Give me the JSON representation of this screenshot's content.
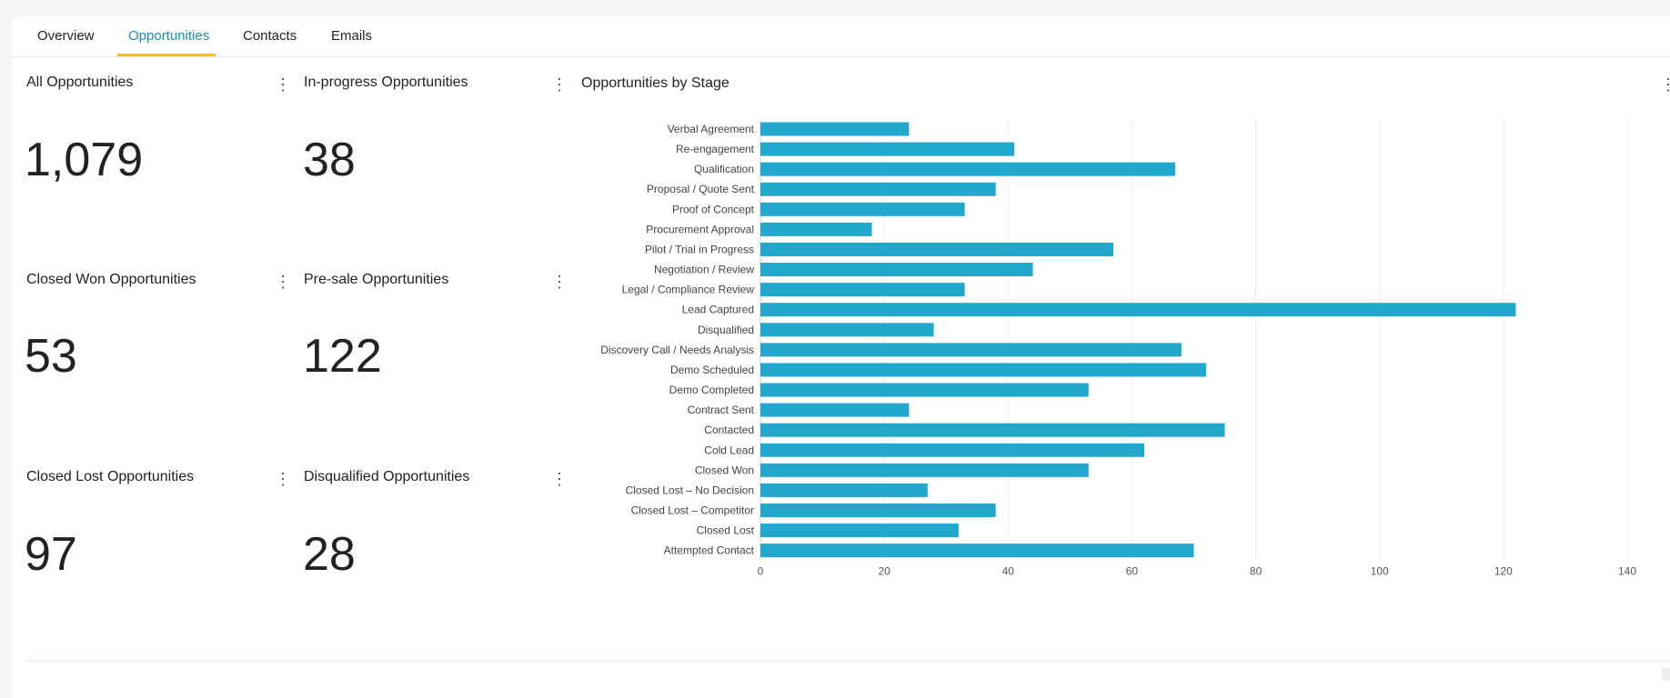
{
  "tabs": [
    {
      "label": "Overview"
    },
    {
      "label": "Opportunities"
    },
    {
      "label": "Contacts"
    },
    {
      "label": "Emails"
    }
  ],
  "active_tab": "Opportunities",
  "kpis": [
    {
      "title": "All Opportunities",
      "value": "1,079"
    },
    {
      "title": "In-progress Opportunities",
      "value": "38"
    },
    {
      "title": "Closed Won Opportunities",
      "value": "53"
    },
    {
      "title": "Pre-sale Opportunities",
      "value": "122"
    },
    {
      "title": "Closed Lost Opportunities",
      "value": "97"
    },
    {
      "title": "Disqualified Opportunities",
      "value": "28"
    }
  ],
  "colors": {
    "bar": "#22a8cc",
    "accent": "#1a8fb3",
    "tab_underline": "#f5c400"
  },
  "chart_data": {
    "type": "bar",
    "orientation": "horizontal",
    "title": "Opportunities by Stage",
    "categories": [
      "Verbal Agreement",
      "Re-engagement",
      "Qualification",
      "Proposal / Quote Sent",
      "Proof of Concept",
      "Procurement Approval",
      "Pilot / Trial in Progress",
      "Negotiation / Review",
      "Legal / Compliance Review",
      "Lead Captured",
      "Disqualified",
      "Discovery Call / Needs Analysis",
      "Demo Scheduled",
      "Demo Completed",
      "Contract Sent",
      "Contacted",
      "Cold Lead",
      "Closed Won",
      "Closed Lost – No Decision",
      "Closed Lost – Competitor",
      "Closed Lost",
      "Attempted Contact"
    ],
    "values": [
      24,
      41,
      67,
      38,
      33,
      18,
      57,
      44,
      33,
      122,
      28,
      68,
      72,
      53,
      24,
      75,
      62,
      53,
      27,
      38,
      32,
      70
    ],
    "xlim": [
      0,
      140
    ],
    "xticks": [
      "0",
      "20",
      "40",
      "60",
      "80",
      "100",
      "120",
      "140"
    ],
    "grid": true
  }
}
